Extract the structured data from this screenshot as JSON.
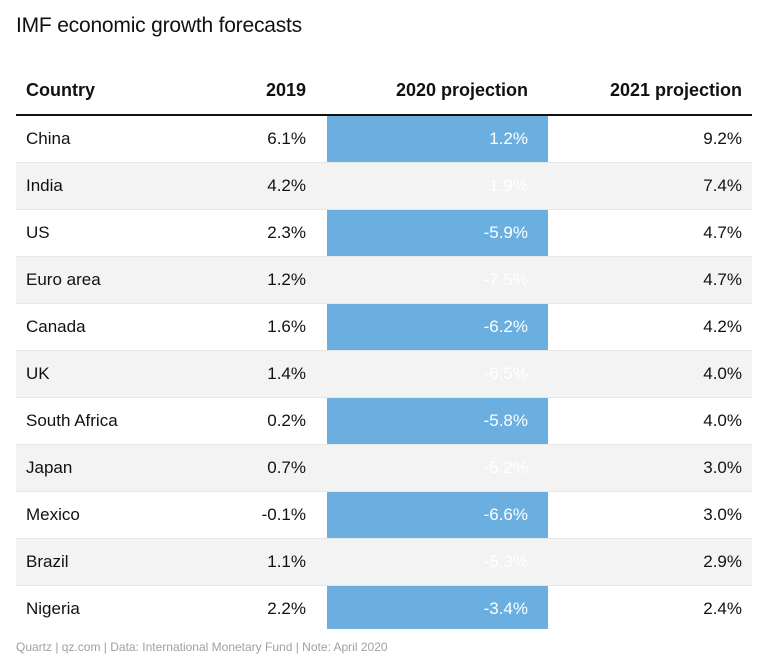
{
  "chart_data": {
    "type": "table",
    "title": "IMF economic growth forecasts",
    "columns": [
      "Country",
      "2019",
      "2020 projection",
      "2021 projection"
    ],
    "rows": [
      [
        "China",
        "6.1%",
        "1.2%",
        "9.2%"
      ],
      [
        "India",
        "4.2%",
        "1.9%",
        "7.4%"
      ],
      [
        "US",
        "2.3%",
        "-5.9%",
        "4.7%"
      ],
      [
        "Euro area",
        "1.2%",
        "-7.5%",
        "4.7%"
      ],
      [
        "Canada",
        "1.6%",
        "-6.2%",
        "4.2%"
      ],
      [
        "UK",
        "1.4%",
        "-6.5%",
        "4.0%"
      ],
      [
        "South Africa",
        "0.2%",
        "-5.8%",
        "4.0%"
      ],
      [
        "Japan",
        "0.7%",
        "-5.2%",
        "3.0%"
      ],
      [
        "Mexico",
        "-0.1%",
        "-6.6%",
        "3.0%"
      ],
      [
        "Brazil",
        "1.1%",
        "-5.3%",
        "2.9%"
      ],
      [
        "Nigeria",
        "2.2%",
        "-3.4%",
        "2.4%"
      ]
    ],
    "highlight_column": "2020 projection",
    "highlight_color": "#6aafdf"
  },
  "footer": "Quartz | qz.com | Data: International Monetary Fund | Note: April 2020"
}
